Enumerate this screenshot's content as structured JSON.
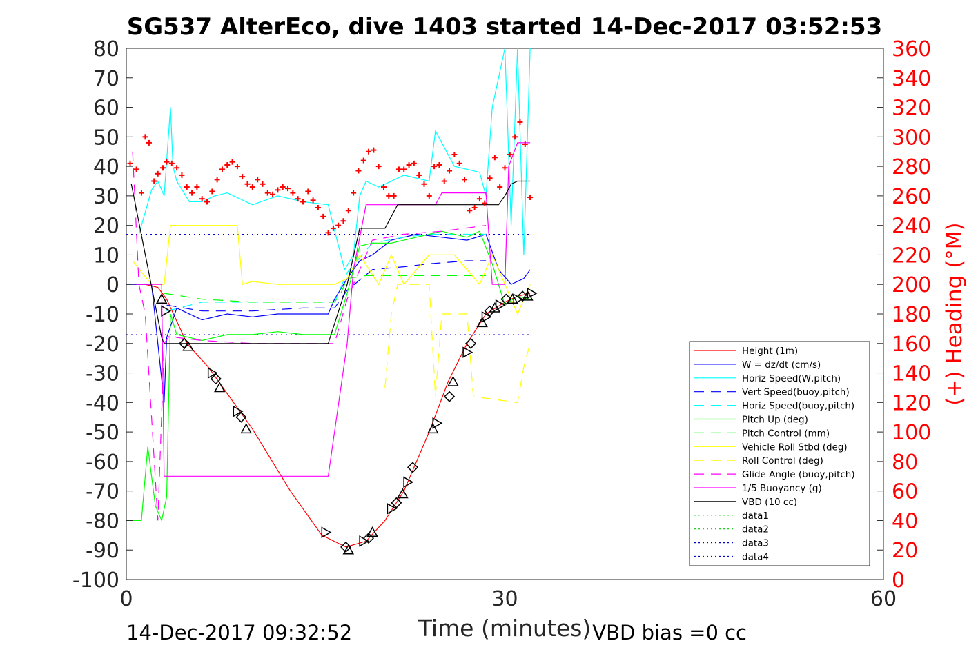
{
  "chart_data": {
    "type": "line",
    "title": "SG537 AlterEco, dive 1403 started 14-Dec-2017 03:52:53",
    "xlabel": "Time (minutes)",
    "ylabel": "",
    "y2label": "(+) Heading (°M)",
    "xlim": [
      0,
      60
    ],
    "ylim": [
      -100,
      80
    ],
    "y2lim": [
      0,
      360
    ],
    "xticks": [
      "0",
      "30",
      "60"
    ],
    "yticks": [
      "80",
      "70",
      "60",
      "50",
      "40",
      "30",
      "20",
      "10",
      "0",
      "-10",
      "-20",
      "-30",
      "-40",
      "-50",
      "-60",
      "-70",
      "-80",
      "-90",
      "-100"
    ],
    "y2ticks": [
      "360",
      "340",
      "320",
      "300",
      "280",
      "260",
      "240",
      "220",
      "200",
      "180",
      "160",
      "140",
      "120",
      "100",
      "80",
      "60",
      "40",
      "20",
      "0"
    ],
    "grid": "x-only at 30",
    "legend_position": "bottom-right",
    "footer_left": "14-Dec-2017 09:32:52",
    "footer_right": "VBD bias =0 cc",
    "colors": {
      "red": "#ff0000",
      "blue": "#0000ff",
      "cyan": "#00ffff",
      "green": "#00ff00",
      "yellow": "#ffff00",
      "magenta": "#ff00ff",
      "black": "#000000",
      "darkred": "#cc0000"
    },
    "reference_lines": [
      {
        "y": 35,
        "style": "dash",
        "color": "#cc0000"
      },
      {
        "y": 17,
        "style": "dot",
        "color": "#0000cc"
      },
      {
        "y": -17,
        "style": "dot",
        "color": "#0000cc"
      }
    ],
    "series": [
      {
        "name": "Height (1m)",
        "color": "#ff0000",
        "dash": "",
        "x": [
          0.6,
          1.5,
          2.5,
          3.2,
          4.8,
          6.5,
          8.0,
          10.0,
          13.0,
          15.5,
          17.4,
          19.0,
          20.5,
          22.0,
          24.0,
          25.5,
          27.0,
          28.5,
          30.0,
          31.0,
          32.0
        ],
        "y": [
          0,
          0,
          -1,
          -5,
          -20,
          -28,
          -37,
          -49,
          -70,
          -85,
          -89,
          -87,
          -80,
          -70,
          -50,
          -33,
          -20,
          -10,
          -6,
          -4,
          -3
        ]
      },
      {
        "name": "W = dz/dt (cm/s)",
        "color": "#0000ff",
        "dash": "",
        "x": [
          0,
          2.0,
          3.0,
          3.2,
          4.0,
          6.0,
          8.0,
          10.0,
          12.0,
          14.0,
          16.0,
          16.5,
          17.5,
          18.5,
          19.5,
          21.0,
          23.0,
          25.0,
          27.0,
          28.5,
          29.5,
          30.5,
          31.5,
          32.0
        ],
        "y": [
          0,
          0,
          -40,
          -18,
          -8,
          -12,
          -10,
          -11,
          -10,
          -10,
          -10,
          -5,
          2,
          8,
          10,
          15,
          17,
          16,
          15,
          17,
          5,
          0,
          2,
          5
        ]
      },
      {
        "name": "Horiz Speed(W,pitch)",
        "color": "#00ffff",
        "dash": "",
        "x": [
          1.0,
          2.0,
          2.5,
          3.0,
          3.5,
          3.7,
          4.0,
          5.0,
          6.0,
          7.0,
          8.0,
          10.0,
          12.0,
          14.0,
          16.0,
          16.7,
          17.3,
          18.0,
          18.5,
          19.0,
          20.0,
          22.0,
          24.0,
          24.5,
          26.0,
          28.0,
          28.5,
          29.0,
          30.0,
          30.5,
          31.0,
          31.5,
          32.0
        ],
        "y": [
          17,
          32,
          35,
          30,
          60,
          40,
          35,
          28,
          28,
          30,
          31,
          27,
          30,
          28,
          27,
          15,
          5,
          10,
          30,
          35,
          33,
          37,
          35,
          52,
          40,
          38,
          30,
          60,
          80,
          20,
          80,
          10,
          80
        ]
      },
      {
        "name": "Vert Speed(buoy,pitch)",
        "color": "#0000ff",
        "dash": "14,10",
        "x": [
          3.2,
          6.0,
          10.0,
          14.0,
          16.5,
          17.5,
          19.5,
          22.0,
          24.0,
          27.0,
          28.5
        ],
        "y": [
          -7,
          -9,
          -9,
          -8,
          -8,
          -2,
          5,
          6,
          7,
          8,
          8
        ]
      },
      {
        "name": "Horiz Speed(buoy,pitch)",
        "color": "#00ffff",
        "dash": "14,10",
        "x": [
          3.2,
          6.0,
          10.0,
          14.0,
          16.5,
          17.5,
          19.5,
          22.0,
          24.0,
          27.0,
          28.5
        ],
        "y": [
          -9,
          -6,
          -6,
          -6,
          -6,
          4,
          14,
          16,
          17,
          17,
          17
        ]
      },
      {
        "name": "Pitch Up (deg)",
        "color": "#00ff00",
        "dash": "",
        "x": [
          0,
          1.2,
          1.7,
          2.3,
          2.8,
          3.2,
          3.5,
          4.0,
          6.0,
          8.0,
          10.0,
          12.0,
          14.0,
          16.5,
          17.0,
          17.5,
          18.5,
          19.5,
          21.0,
          23.0,
          25.0,
          27.0,
          28.0,
          29.0,
          30.0,
          31.0,
          32.0
        ],
        "y": [
          -80,
          -80,
          -55,
          -75,
          -80,
          -72,
          -10,
          -17,
          -19,
          -17,
          -17,
          -16,
          -17,
          -17,
          -10,
          -3,
          13,
          14,
          14,
          16,
          18,
          16,
          18,
          7,
          -7,
          -4,
          -5
        ]
      },
      {
        "name": "Pitch Control (mm)",
        "color": "#00ff00",
        "dash": "14,10",
        "x": [
          3.0,
          6.0,
          10.0,
          14.0,
          16.5,
          17.0,
          17.5,
          19.0,
          22.0,
          25.0,
          28.5
        ],
        "y": [
          -3,
          -5,
          -6,
          -6,
          -6,
          -3,
          2,
          3,
          3,
          3,
          3
        ]
      },
      {
        "name": "Vehicle Roll Stbd (deg)",
        "color": "#ffff00",
        "dash": "",
        "x": [
          0.5,
          2.0,
          3.0,
          3.5,
          4.0,
          4.5,
          6.0,
          7.0,
          8.0,
          8.8,
          9.2,
          10.0,
          12.0,
          14.0,
          16.5,
          17.5,
          18.5,
          20.0,
          21.0,
          22.0,
          24.0,
          26.0,
          28.0,
          29.0,
          30.0,
          31.0,
          32.0
        ],
        "y": [
          8,
          0,
          0,
          20,
          20,
          20,
          20,
          20,
          20,
          20,
          0,
          1,
          0,
          0,
          0,
          2,
          10,
          0,
          10,
          0,
          10,
          10,
          0,
          10,
          0,
          -10,
          0
        ]
      },
      {
        "name": "Roll Control (deg)",
        "color": "#ffff00",
        "dash": "14,10",
        "x": [
          20.5,
          21.0,
          21.5,
          24.0,
          24.5,
          25.0,
          27.0,
          27.5,
          31.0,
          31.5,
          32.0
        ],
        "y": [
          -35,
          -10,
          0,
          0,
          -38,
          -10,
          -10,
          -38,
          -40,
          -28,
          -20
        ]
      },
      {
        "name": "Glide Angle (buoy,pitch)",
        "color": "#ff00ff",
        "dash": "14,10",
        "x": [
          0.5,
          1.0,
          1.5,
          2.0,
          2.5,
          3.0,
          3.5,
          4.0,
          6.0,
          10.0,
          14.0,
          16.5,
          17.5,
          19.5,
          22.0,
          25.0,
          28.5
        ],
        "y": [
          45,
          0,
          -10,
          -45,
          -80,
          -20,
          -17,
          -18,
          -19,
          -20,
          -20,
          -20,
          -5,
          15,
          17,
          18,
          20
        ]
      },
      {
        "name": "1/5 Buoyancy (g)",
        "color": "#ff00ff",
        "dash": "",
        "x": [
          0.8,
          2.0,
          2.8,
          3.0,
          3.5,
          10.0,
          14.0,
          15.8,
          16.0,
          17.5,
          18.0,
          19.0,
          24.5,
          25.0,
          28.5,
          29.0,
          30.0,
          30.3,
          31.0,
          32.0
        ],
        "y": [
          0,
          0,
          0,
          -65,
          -65,
          -65,
          -65,
          -65,
          -65,
          -20,
          5,
          27,
          27,
          31,
          31,
          0,
          0,
          40,
          48,
          48
        ]
      },
      {
        "name": "VBD (10 cc)",
        "color": "#000000",
        "dash": "",
        "x": [
          0.4,
          2.8,
          3.0,
          5.0,
          10.0,
          15.0,
          15.8,
          16.0,
          17.5,
          18.5,
          19.0,
          20.5,
          21.5,
          25.0,
          28.5,
          29.5,
          30.0,
          30.5,
          31.0,
          32.0
        ],
        "y": [
          34,
          -18,
          -20,
          -20,
          -20,
          -20,
          -20,
          -20,
          0,
          19,
          19,
          19,
          27,
          27,
          27,
          27,
          30,
          34,
          35,
          35
        ]
      },
      {
        "name": "data1",
        "color": "#00cc00",
        "dash": "2,4"
      },
      {
        "name": "data2",
        "color": "#00cc00",
        "dash": "2,4"
      },
      {
        "name": "data3",
        "color": "#0000cc",
        "dash": "2,4"
      },
      {
        "name": "data4",
        "color": "#0000cc",
        "dash": "2,4"
      }
    ],
    "heading_points": {
      "axis": "right",
      "color": "#ff0000",
      "x": [
        0.3,
        0.8,
        1.2,
        1.5,
        1.8,
        2.2,
        2.5,
        2.9,
        3.2,
        3.6,
        4.0,
        4.4,
        4.8,
        5.2,
        5.6,
        6.0,
        6.4,
        6.8,
        7.2,
        7.6,
        8.0,
        8.4,
        8.8,
        9.2,
        9.6,
        10.0,
        10.4,
        10.8,
        11.2,
        11.6,
        12.0,
        12.4,
        12.8,
        13.2,
        13.6,
        14.0,
        14.4,
        14.8,
        15.2,
        15.6,
        16.0,
        16.4,
        16.8,
        17.2,
        17.6,
        18.0,
        18.4,
        18.8,
        19.2,
        19.6,
        20.0,
        20.4,
        20.8,
        21.2,
        21.6,
        22.0,
        22.4,
        22.8,
        23.2,
        23.6,
        24.0,
        24.4,
        24.8,
        25.2,
        25.6,
        26.0,
        26.4,
        26.8,
        27.2,
        27.6,
        28.0,
        28.4,
        28.8,
        29.2,
        29.6,
        30.0,
        30.4,
        30.8,
        31.2,
        31.6,
        32.0
      ],
      "y": [
        282,
        278,
        262,
        300,
        296,
        270,
        275,
        279,
        283,
        282,
        279,
        274,
        266,
        262,
        266,
        258,
        256,
        263,
        271,
        278,
        281,
        283,
        280,
        273,
        268,
        266,
        271,
        268,
        262,
        261,
        264,
        266,
        265,
        262,
        258,
        256,
        263,
        257,
        252,
        246,
        235,
        238,
        240,
        243,
        250,
        262,
        277,
        284,
        290,
        291,
        280,
        266,
        260,
        260,
        278,
        278,
        281,
        282,
        274,
        268,
        260,
        280,
        281,
        270,
        277,
        288,
        282,
        271,
        250,
        252,
        258,
        255,
        272,
        286,
        266,
        279,
        288,
        300,
        310,
        295,
        259
      ]
    },
    "depth_markers": {
      "axis": "left",
      "color": "#000000",
      "symbols": "triangles and diamonds",
      "x": [
        2.8,
        3.1,
        4.6,
        4.9,
        6.8,
        7.1,
        7.4,
        8.8,
        9.1,
        9.5,
        15.8,
        17.4,
        17.6,
        18.8,
        19.2,
        19.5,
        21.0,
        21.4,
        21.9,
        22.3,
        22.7,
        24.3,
        24.6,
        25.6,
        25.9,
        27.0,
        27.3,
        28.2,
        28.5,
        28.8,
        29.2,
        29.6,
        30.1,
        30.6,
        31.0,
        31.4,
        31.8,
        32.1
      ],
      "y": [
        -5,
        -9,
        -20,
        -21,
        -30,
        -32,
        -35,
        -43,
        -45,
        -49,
        -84,
        -89,
        -90,
        -87,
        -86,
        -84,
        -76,
        -74,
        -71,
        -67,
        -62,
        -49,
        -47,
        -38,
        -33,
        -23,
        -20,
        -13,
        -11,
        -9,
        -8,
        -7,
        -5,
        -5,
        -5,
        -4,
        -4,
        -3
      ]
    }
  }
}
